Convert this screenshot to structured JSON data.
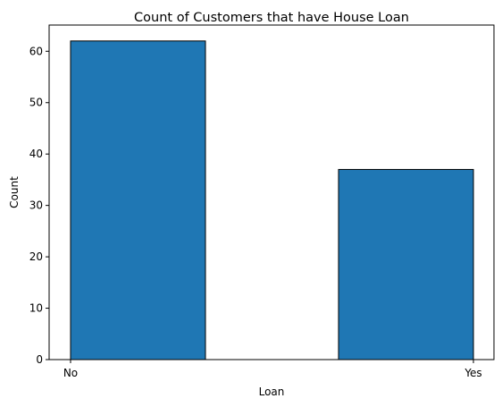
{
  "chart_data": {
    "type": "bar",
    "title": "Count of Customers that have House Loan",
    "xlabel": "Loan",
    "ylabel": "Count",
    "categories": [
      "No",
      "Yes"
    ],
    "values": [
      62,
      37
    ],
    "ylim": [
      0,
      65.1
    ],
    "yticks": [
      0,
      10,
      20,
      30,
      40,
      50,
      60
    ],
    "grid": false,
    "bar_color": "#1f77b4",
    "edge_color": "#000000"
  }
}
